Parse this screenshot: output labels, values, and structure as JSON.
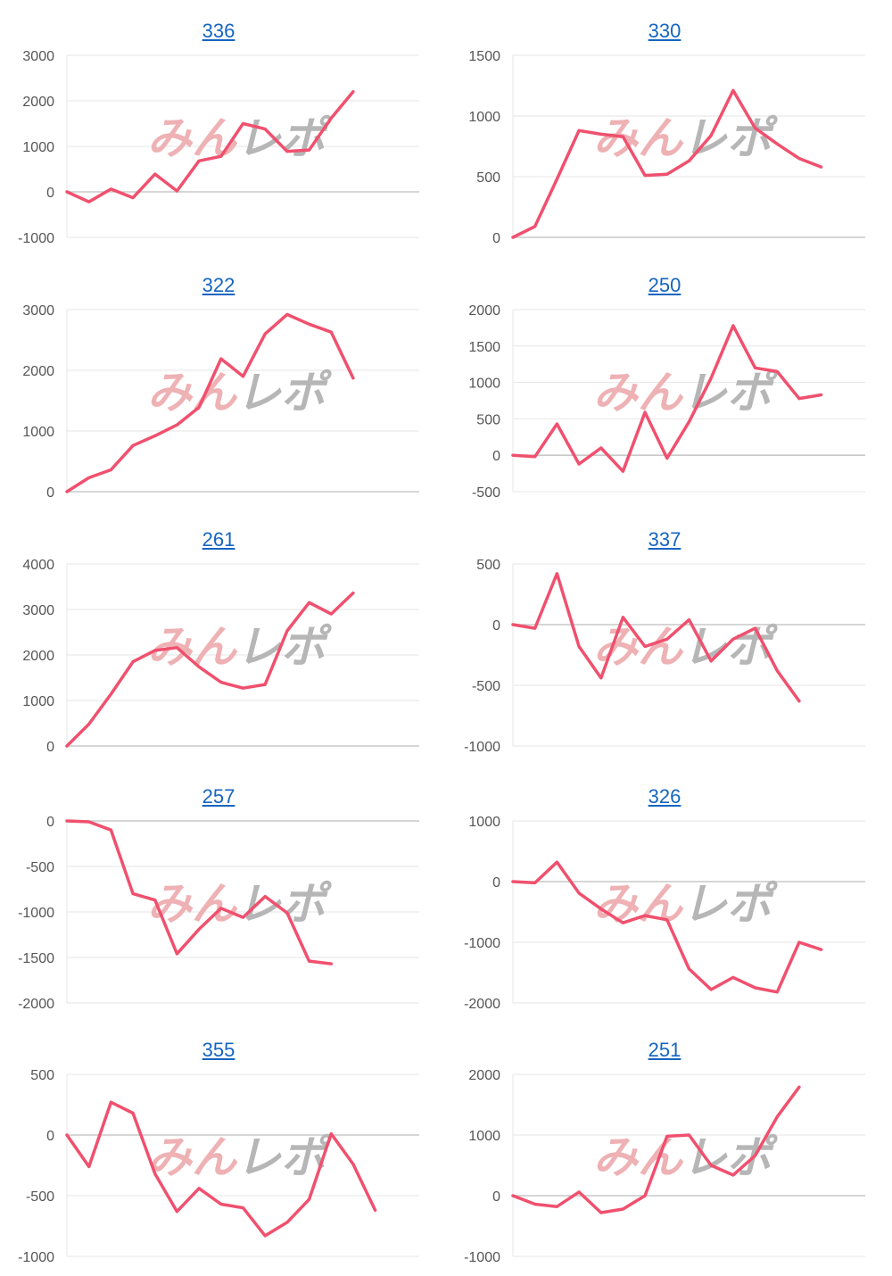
{
  "watermark": {
    "part1": "みん",
    "part2": "レポ"
  },
  "colors": {
    "line": "#f0506e",
    "grid": "#e6e6e6",
    "axis": "#c8c8c8",
    "title": "#1565c0"
  },
  "chart_data": [
    {
      "type": "line",
      "title": "336",
      "yticks": [
        -1000,
        0,
        1000,
        2000,
        3000
      ],
      "ylim": [
        -1000,
        3000
      ],
      "grid": true,
      "values": [
        0,
        -220,
        60,
        -130,
        390,
        20,
        680,
        780,
        1500,
        1380,
        890,
        920,
        1620,
        2200
      ]
    },
    {
      "type": "line",
      "title": "330",
      "yticks": [
        0,
        500,
        1000,
        1500
      ],
      "ylim": [
        0,
        1500
      ],
      "grid": true,
      "values": [
        0,
        90,
        480,
        880,
        850,
        830,
        510,
        520,
        630,
        840,
        1210,
        900,
        770,
        650,
        580
      ]
    },
    {
      "type": "line",
      "title": "322",
      "yticks": [
        0,
        1000,
        2000,
        3000
      ],
      "ylim": [
        0,
        3000
      ],
      "grid": true,
      "values": [
        0,
        230,
        360,
        760,
        920,
        1100,
        1390,
        2190,
        1900,
        2600,
        2920,
        2760,
        2630,
        1870
      ]
    },
    {
      "type": "line",
      "title": "250",
      "yticks": [
        -500,
        0,
        500,
        1000,
        1500,
        2000
      ],
      "ylim": [
        -500,
        2000
      ],
      "grid": true,
      "values": [
        0,
        -20,
        430,
        -120,
        100,
        -220,
        590,
        -40,
        460,
        1060,
        1780,
        1200,
        1150,
        780,
        830
      ]
    },
    {
      "type": "line",
      "title": "261",
      "yticks": [
        0,
        1000,
        2000,
        3000,
        4000
      ],
      "ylim": [
        0,
        4000
      ],
      "grid": true,
      "values": [
        0,
        480,
        1140,
        1850,
        2100,
        2160,
        1740,
        1400,
        1270,
        1350,
        2530,
        3150,
        2900,
        3360
      ]
    },
    {
      "type": "line",
      "title": "337",
      "yticks": [
        -1000,
        -500,
        0,
        500
      ],
      "ylim": [
        -1000,
        500
      ],
      "grid": true,
      "values": [
        0,
        -30,
        420,
        -180,
        -440,
        60,
        -180,
        -120,
        40,
        -300,
        -120,
        -30,
        -380,
        -630
      ]
    },
    {
      "type": "line",
      "title": "257",
      "yticks": [
        -2000,
        -1500,
        -1000,
        -500,
        0
      ],
      "ylim": [
        -2000,
        0
      ],
      "grid": true,
      "values": [
        0,
        -10,
        -100,
        -800,
        -870,
        -1460,
        -1190,
        -960,
        -1060,
        -830,
        -1010,
        -1540,
        -1570
      ]
    },
    {
      "type": "line",
      "title": "326",
      "yticks": [
        -2000,
        -1000,
        0,
        1000
      ],
      "ylim": [
        -2000,
        1000
      ],
      "grid": true,
      "values": [
        0,
        -20,
        320,
        -190,
        -450,
        -680,
        -560,
        -630,
        -1440,
        -1780,
        -1580,
        -1750,
        -1820,
        -1000,
        -1120
      ]
    },
    {
      "type": "line",
      "title": "355",
      "yticks": [
        -1000,
        -500,
        0,
        500
      ],
      "ylim": [
        -1000,
        500
      ],
      "grid": true,
      "values": [
        0,
        -260,
        270,
        180,
        -320,
        -630,
        -440,
        -570,
        -600,
        -830,
        -720,
        -530,
        10,
        -240,
        -620
      ]
    },
    {
      "type": "line",
      "title": "251",
      "yticks": [
        -1000,
        0,
        1000,
        2000
      ],
      "ylim": [
        -1000,
        2000
      ],
      "grid": true,
      "values": [
        0,
        -140,
        -180,
        60,
        -280,
        -220,
        0,
        980,
        1000,
        500,
        340,
        660,
        1300,
        1790
      ]
    }
  ]
}
